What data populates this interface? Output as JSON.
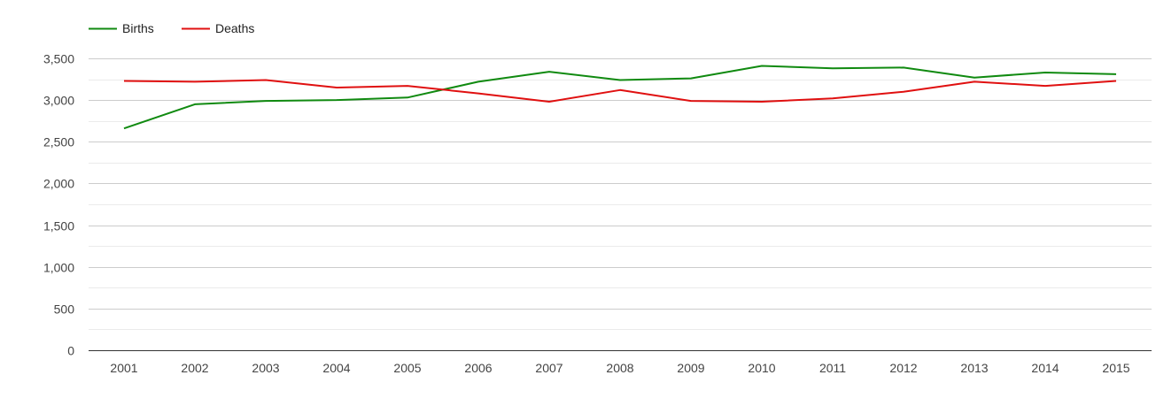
{
  "colors": {
    "background": "#ffffff",
    "gridline": "#cccccc",
    "minor_gridline": "#ebebeb",
    "axis_baseline": "#333333",
    "births": "#108a10",
    "deaths": "#e01010"
  },
  "chart_data": {
    "type": "line",
    "title": "",
    "xlabel": "",
    "ylabel": "",
    "x": [
      "2001",
      "2002",
      "2003",
      "2004",
      "2005",
      "2006",
      "2007",
      "2008",
      "2009",
      "2010",
      "2011",
      "2012",
      "2013",
      "2014",
      "2015"
    ],
    "ylim": [
      0,
      3500
    ],
    "y_ticks": [
      0,
      500,
      1000,
      1500,
      2000,
      2500,
      3000,
      3500
    ],
    "y_tick_labels": [
      "0",
      "500",
      "1,000",
      "1,500",
      "2,000",
      "2,500",
      "3,000",
      "3,500"
    ],
    "grid": true,
    "legend_position": "top-left",
    "series": [
      {
        "name": "Births",
        "color": "#108a10",
        "values": [
          2660,
          2950,
          2990,
          3000,
          3030,
          3220,
          3340,
          3240,
          3260,
          3410,
          3380,
          3390,
          3270,
          3330,
          3310
        ]
      },
      {
        "name": "Deaths",
        "color": "#e01010",
        "values": [
          3230,
          3220,
          3240,
          3150,
          3170,
          3080,
          2980,
          3120,
          2990,
          2980,
          3020,
          3100,
          3220,
          3170,
          3230
        ]
      }
    ]
  }
}
